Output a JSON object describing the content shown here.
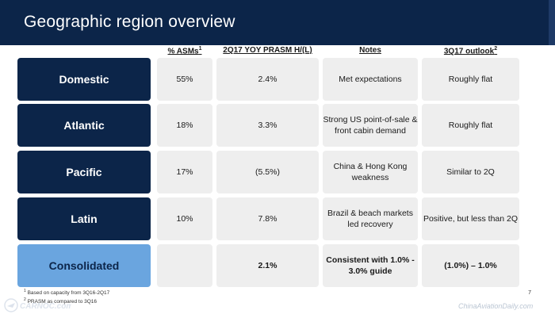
{
  "title": "Geographic region overview",
  "columns": {
    "asms": "% ASMs",
    "asms_note": "1",
    "prasm": "2Q17 YOY PRASM H/(L)",
    "notes": "Notes",
    "outlook": "3Q17 outlook",
    "outlook_note": "2"
  },
  "rows": [
    {
      "region": "Domestic",
      "asms": "55%",
      "prasm": "2.4%",
      "notes": "Met expectations",
      "outlook": "Roughly flat"
    },
    {
      "region": "Atlantic",
      "asms": "18%",
      "prasm": "3.3%",
      "notes": "Strong US point-of-sale & front cabin demand",
      "outlook": "Roughly flat"
    },
    {
      "region": "Pacific",
      "asms": "17%",
      "prasm": "(5.5%)",
      "notes": "China & Hong Kong weakness",
      "outlook": "Similar to 2Q"
    },
    {
      "region": "Latin",
      "asms": "10%",
      "prasm": "7.8%",
      "notes": "Brazil & beach markets led recovery",
      "outlook": "Positive, but less than 2Q"
    },
    {
      "region": "Consolidated",
      "asms": "",
      "prasm": "2.1%",
      "notes": "Consistent with 1.0% - 3.0% guide",
      "outlook": "(1.0%) – 1.0%"
    }
  ],
  "footnotes": [
    {
      "marker": "1",
      "text": "Based on capacity from 3Q16-2Q17"
    },
    {
      "marker": "2",
      "text": "PRASM as compared to 3Q16"
    }
  ],
  "page_number": "7",
  "watermarks": {
    "left": "CARNOC.com",
    "right": "ChinaAviationDaily.com"
  },
  "colors": {
    "navy": "#0c2549",
    "light_blue": "#6aa5df",
    "cell_gray": "#eeeeee"
  }
}
